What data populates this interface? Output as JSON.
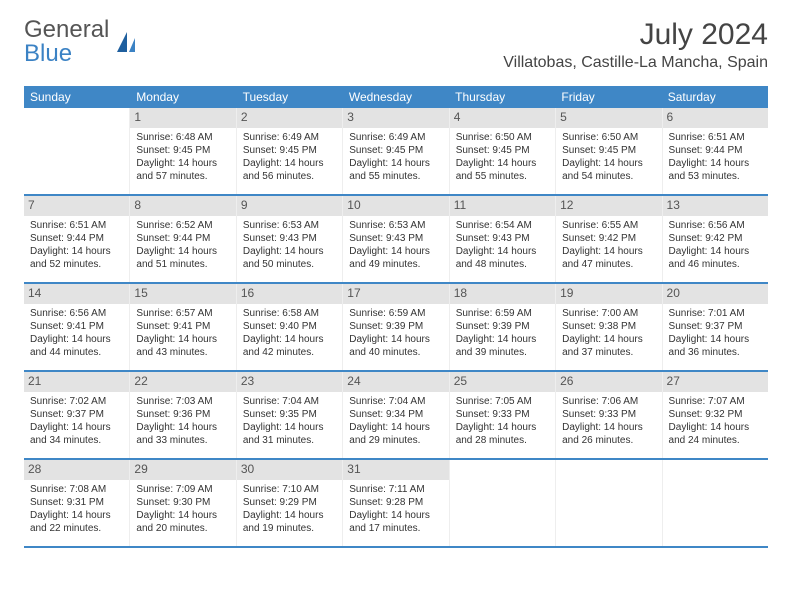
{
  "logo": {
    "textGray": "General",
    "textBlue": "Blue"
  },
  "title": "July 2024",
  "location": "Villatobas, Castille-La Mancha, Spain",
  "colors": {
    "headerBlue": "#3f87c6",
    "dayNumBar": "#e3e3e3",
    "text": "#333333"
  },
  "dayNames": [
    "Sunday",
    "Monday",
    "Tuesday",
    "Wednesday",
    "Thursday",
    "Friday",
    "Saturday"
  ],
  "weeks": [
    [
      {
        "day": "",
        "sunrise": "",
        "sunset": "",
        "daylight": ""
      },
      {
        "day": "1",
        "sunrise": "Sunrise: 6:48 AM",
        "sunset": "Sunset: 9:45 PM",
        "daylight": "Daylight: 14 hours and 57 minutes."
      },
      {
        "day": "2",
        "sunrise": "Sunrise: 6:49 AM",
        "sunset": "Sunset: 9:45 PM",
        "daylight": "Daylight: 14 hours and 56 minutes."
      },
      {
        "day": "3",
        "sunrise": "Sunrise: 6:49 AM",
        "sunset": "Sunset: 9:45 PM",
        "daylight": "Daylight: 14 hours and 55 minutes."
      },
      {
        "day": "4",
        "sunrise": "Sunrise: 6:50 AM",
        "sunset": "Sunset: 9:45 PM",
        "daylight": "Daylight: 14 hours and 55 minutes."
      },
      {
        "day": "5",
        "sunrise": "Sunrise: 6:50 AM",
        "sunset": "Sunset: 9:45 PM",
        "daylight": "Daylight: 14 hours and 54 minutes."
      },
      {
        "day": "6",
        "sunrise": "Sunrise: 6:51 AM",
        "sunset": "Sunset: 9:44 PM",
        "daylight": "Daylight: 14 hours and 53 minutes."
      }
    ],
    [
      {
        "day": "7",
        "sunrise": "Sunrise: 6:51 AM",
        "sunset": "Sunset: 9:44 PM",
        "daylight": "Daylight: 14 hours and 52 minutes."
      },
      {
        "day": "8",
        "sunrise": "Sunrise: 6:52 AM",
        "sunset": "Sunset: 9:44 PM",
        "daylight": "Daylight: 14 hours and 51 minutes."
      },
      {
        "day": "9",
        "sunrise": "Sunrise: 6:53 AM",
        "sunset": "Sunset: 9:43 PM",
        "daylight": "Daylight: 14 hours and 50 minutes."
      },
      {
        "day": "10",
        "sunrise": "Sunrise: 6:53 AM",
        "sunset": "Sunset: 9:43 PM",
        "daylight": "Daylight: 14 hours and 49 minutes."
      },
      {
        "day": "11",
        "sunrise": "Sunrise: 6:54 AM",
        "sunset": "Sunset: 9:43 PM",
        "daylight": "Daylight: 14 hours and 48 minutes."
      },
      {
        "day": "12",
        "sunrise": "Sunrise: 6:55 AM",
        "sunset": "Sunset: 9:42 PM",
        "daylight": "Daylight: 14 hours and 47 minutes."
      },
      {
        "day": "13",
        "sunrise": "Sunrise: 6:56 AM",
        "sunset": "Sunset: 9:42 PM",
        "daylight": "Daylight: 14 hours and 46 minutes."
      }
    ],
    [
      {
        "day": "14",
        "sunrise": "Sunrise: 6:56 AM",
        "sunset": "Sunset: 9:41 PM",
        "daylight": "Daylight: 14 hours and 44 minutes."
      },
      {
        "day": "15",
        "sunrise": "Sunrise: 6:57 AM",
        "sunset": "Sunset: 9:41 PM",
        "daylight": "Daylight: 14 hours and 43 minutes."
      },
      {
        "day": "16",
        "sunrise": "Sunrise: 6:58 AM",
        "sunset": "Sunset: 9:40 PM",
        "daylight": "Daylight: 14 hours and 42 minutes."
      },
      {
        "day": "17",
        "sunrise": "Sunrise: 6:59 AM",
        "sunset": "Sunset: 9:39 PM",
        "daylight": "Daylight: 14 hours and 40 minutes."
      },
      {
        "day": "18",
        "sunrise": "Sunrise: 6:59 AM",
        "sunset": "Sunset: 9:39 PM",
        "daylight": "Daylight: 14 hours and 39 minutes."
      },
      {
        "day": "19",
        "sunrise": "Sunrise: 7:00 AM",
        "sunset": "Sunset: 9:38 PM",
        "daylight": "Daylight: 14 hours and 37 minutes."
      },
      {
        "day": "20",
        "sunrise": "Sunrise: 7:01 AM",
        "sunset": "Sunset: 9:37 PM",
        "daylight": "Daylight: 14 hours and 36 minutes."
      }
    ],
    [
      {
        "day": "21",
        "sunrise": "Sunrise: 7:02 AM",
        "sunset": "Sunset: 9:37 PM",
        "daylight": "Daylight: 14 hours and 34 minutes."
      },
      {
        "day": "22",
        "sunrise": "Sunrise: 7:03 AM",
        "sunset": "Sunset: 9:36 PM",
        "daylight": "Daylight: 14 hours and 33 minutes."
      },
      {
        "day": "23",
        "sunrise": "Sunrise: 7:04 AM",
        "sunset": "Sunset: 9:35 PM",
        "daylight": "Daylight: 14 hours and 31 minutes."
      },
      {
        "day": "24",
        "sunrise": "Sunrise: 7:04 AM",
        "sunset": "Sunset: 9:34 PM",
        "daylight": "Daylight: 14 hours and 29 minutes."
      },
      {
        "day": "25",
        "sunrise": "Sunrise: 7:05 AM",
        "sunset": "Sunset: 9:33 PM",
        "daylight": "Daylight: 14 hours and 28 minutes."
      },
      {
        "day": "26",
        "sunrise": "Sunrise: 7:06 AM",
        "sunset": "Sunset: 9:33 PM",
        "daylight": "Daylight: 14 hours and 26 minutes."
      },
      {
        "day": "27",
        "sunrise": "Sunrise: 7:07 AM",
        "sunset": "Sunset: 9:32 PM",
        "daylight": "Daylight: 14 hours and 24 minutes."
      }
    ],
    [
      {
        "day": "28",
        "sunrise": "Sunrise: 7:08 AM",
        "sunset": "Sunset: 9:31 PM",
        "daylight": "Daylight: 14 hours and 22 minutes."
      },
      {
        "day": "29",
        "sunrise": "Sunrise: 7:09 AM",
        "sunset": "Sunset: 9:30 PM",
        "daylight": "Daylight: 14 hours and 20 minutes."
      },
      {
        "day": "30",
        "sunrise": "Sunrise: 7:10 AM",
        "sunset": "Sunset: 9:29 PM",
        "daylight": "Daylight: 14 hours and 19 minutes."
      },
      {
        "day": "31",
        "sunrise": "Sunrise: 7:11 AM",
        "sunset": "Sunset: 9:28 PM",
        "daylight": "Daylight: 14 hours and 17 minutes."
      },
      {
        "day": "",
        "sunrise": "",
        "sunset": "",
        "daylight": ""
      },
      {
        "day": "",
        "sunrise": "",
        "sunset": "",
        "daylight": ""
      },
      {
        "day": "",
        "sunrise": "",
        "sunset": "",
        "daylight": ""
      }
    ]
  ]
}
